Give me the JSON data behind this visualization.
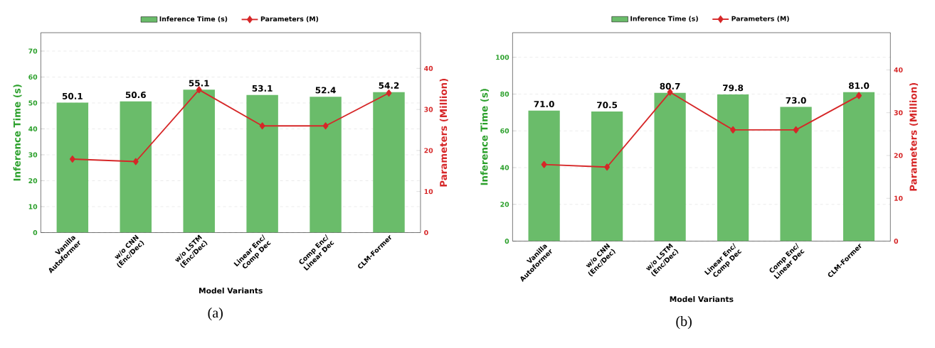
{
  "chart_data": [
    {
      "type": "bar",
      "categories": [
        "Vanilla Autoformer",
        "w/o CNN (Enc/Dec)",
        "w/o LSTM (Enc/Dec)",
        "Linear Enc/ Comp Dec",
        "Comp Enc/ Linear Dec",
        "CLM-Former"
      ],
      "series": [
        {
          "name": "Inference Time (s)",
          "color": "#6abc6a",
          "values": [
            50.1,
            50.6,
            55.1,
            53.1,
            52.4,
            54.2
          ],
          "value_labels": [
            "50.1",
            "50.6",
            "55.1",
            "53.1",
            "52.4",
            "54.2"
          ]
        },
        {
          "name": "Parameters (M)",
          "type": "line",
          "axis": "y2",
          "color": "#d62728",
          "marker": "diamond",
          "values": [
            17.9,
            17.3,
            34.8,
            26.0,
            26.0,
            34.0
          ]
        }
      ],
      "xlabel": "Model Variants",
      "ylabel": "Inference Time (s)",
      "y2label": "Parameters (Million)",
      "ylim": [
        0,
        77.1
      ],
      "yticks": [
        0,
        10,
        20,
        30,
        40,
        50,
        60,
        70
      ],
      "y2lim": [
        0,
        48.7
      ],
      "y2ticks": [
        0,
        10,
        20,
        30,
        40
      ],
      "grid": "y",
      "legend": "top",
      "annotations": [
        "(a)"
      ]
    },
    {
      "type": "bar",
      "categories": [
        "Vanilla Autoformer",
        "w/o CNN (Enc/Dec)",
        "w/o LSTM (Enc/Dec)",
        "Linear Enc/ Comp Dec",
        "Comp Enc/ Linear Dec",
        "CLM-Former"
      ],
      "series": [
        {
          "name": "Inference Time (s)",
          "color": "#6abc6a",
          "values": [
            71.0,
            70.5,
            80.7,
            79.8,
            73.0,
            81.0
          ],
          "value_labels": [
            "71.0",
            "70.5",
            "80.7",
            "79.8",
            "73.0",
            "81.0"
          ]
        },
        {
          "name": "Parameters (M)",
          "type": "line",
          "axis": "y2",
          "color": "#d62728",
          "marker": "diamond",
          "values": [
            17.9,
            17.3,
            34.8,
            26.0,
            26.0,
            34.0
          ]
        }
      ],
      "xlabel": "Model Variants",
      "ylabel": "Inference Time (s)",
      "y2label": "Parameters (Million)",
      "ylim": [
        0,
        113.4
      ],
      "yticks": [
        0,
        20,
        40,
        60,
        80,
        100
      ],
      "y2lim": [
        0,
        48.7
      ],
      "y2ticks": [
        0,
        10,
        20,
        30,
        40
      ],
      "grid": "y",
      "legend": "top",
      "annotations": [
        "(b)"
      ]
    }
  ]
}
